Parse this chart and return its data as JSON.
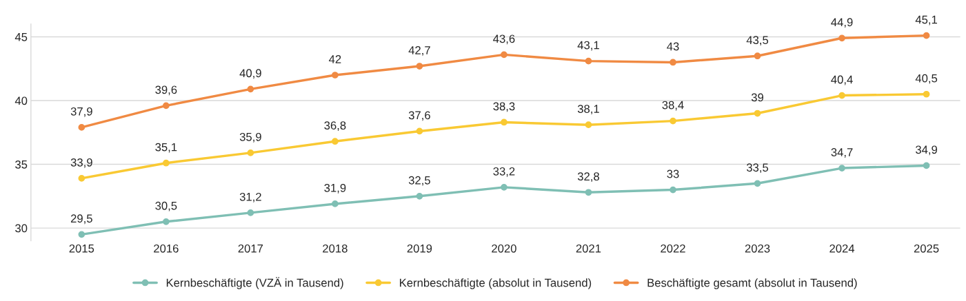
{
  "chart_data": {
    "type": "line",
    "categories": [
      "2015",
      "2016",
      "2017",
      "2018",
      "2019",
      "2020",
      "2021",
      "2022",
      "2023",
      "2024",
      "2025"
    ],
    "ylim": [
      29,
      46
    ],
    "yticks": [
      30,
      35,
      40,
      45
    ],
    "grid": "y",
    "legend": "bottom",
    "marker": "circle",
    "line_style": "solid",
    "series": [
      {
        "name": "Kernbeschäftigte (VZÄ in Tausend)",
        "color": "#7fbfb4",
        "values": [
          29.5,
          30.5,
          31.2,
          31.9,
          32.5,
          33.2,
          32.8,
          33,
          33.5,
          34.7,
          34.9
        ],
        "value_labels": [
          "29,5",
          "30,5",
          "31,2",
          "31,9",
          "32,5",
          "33,2",
          "32,8",
          "33",
          "33,5",
          "34,7",
          "34,9"
        ]
      },
      {
        "name": "Kernbeschäftigte (absolut in Tausend)",
        "color": "#f9c933",
        "values": [
          33.9,
          35.1,
          35.9,
          36.8,
          37.6,
          38.3,
          38.1,
          38.4,
          39,
          40.4,
          40.5
        ],
        "value_labels": [
          "33,9",
          "35,1",
          "35,9",
          "36,8",
          "37,6",
          "38,3",
          "38,1",
          "38,4",
          "39",
          "40,4",
          "40,5"
        ]
      },
      {
        "name": "Beschäftigte gesamt (absolut in Tausend)",
        "color": "#f08a43",
        "values": [
          37.9,
          39.6,
          40.9,
          42,
          42.7,
          43.6,
          43.1,
          43,
          43.5,
          44.9,
          45.1
        ],
        "value_labels": [
          "37,9",
          "39,6",
          "40,9",
          "42",
          "42,7",
          "43,6",
          "43,1",
          "43",
          "43,5",
          "44,9",
          "45,1"
        ]
      }
    ]
  }
}
